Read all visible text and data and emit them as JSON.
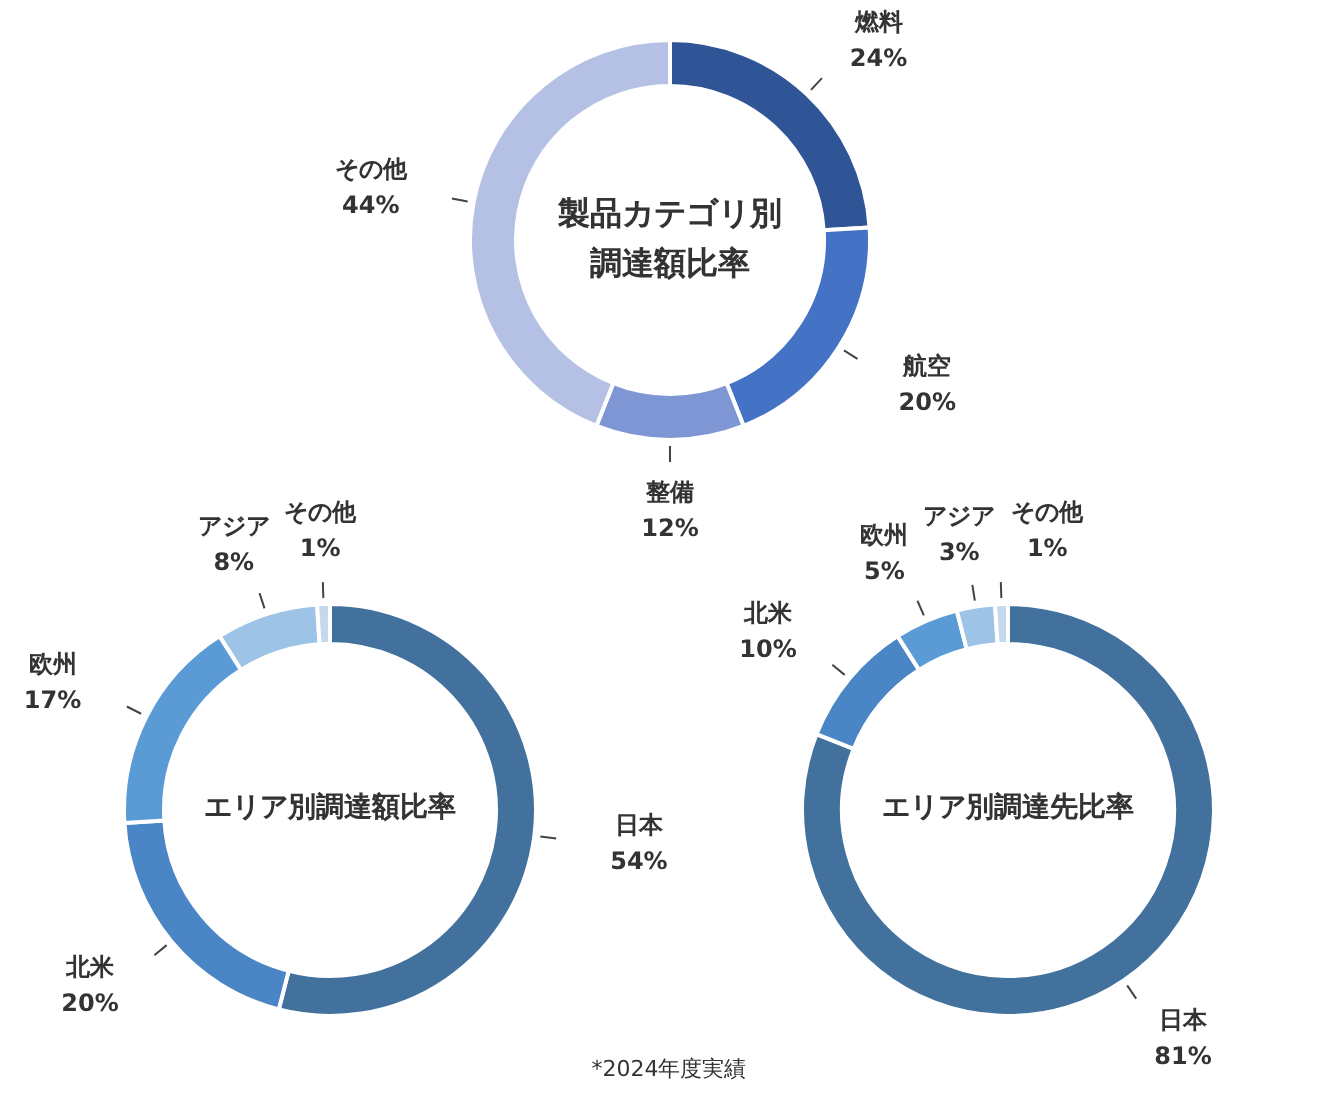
{
  "chart_data": [
    {
      "type": "donut",
      "title": "製品カテゴリ別調達額比率",
      "categories": [
        "燃料",
        "航空",
        "整備",
        "その他"
      ],
      "values": [
        24,
        20,
        12,
        44
      ],
      "colors": [
        "#2f5597",
        "#4472c4",
        "#7f96d4",
        "#b4c0e4"
      ],
      "value_labels": [
        "24%",
        "20%",
        "12%",
        "44%"
      ],
      "data_labels": true
    },
    {
      "type": "donut",
      "title": "エリア別調達額比率",
      "categories": [
        "日本",
        "北米",
        "欧州",
        "アジア",
        "その他"
      ],
      "values": [
        54,
        20,
        17,
        8,
        1
      ],
      "colors": [
        "#41719c",
        "#4a86c5",
        "#5b9bd5",
        "#9dc3e6",
        "#c5d9ee"
      ],
      "value_labels": [
        "54%",
        "20%",
        "17%",
        "8%",
        "1%"
      ],
      "data_labels": true
    },
    {
      "type": "donut",
      "title": "エリア別調達先比率",
      "categories": [
        "日本",
        "北米",
        "欧州",
        "アジア",
        "その他"
      ],
      "values": [
        81,
        10,
        5,
        3,
        1
      ],
      "colors": [
        "#41719c",
        "#4a86c5",
        "#5b9bd5",
        "#9dc3e6",
        "#c5d9ee"
      ],
      "value_labels": [
        "81%",
        "10%",
        "5%",
        "3%",
        "1%"
      ],
      "data_labels": true,
      "annotations": [
        "*2024年度実績"
      ]
    }
  ]
}
